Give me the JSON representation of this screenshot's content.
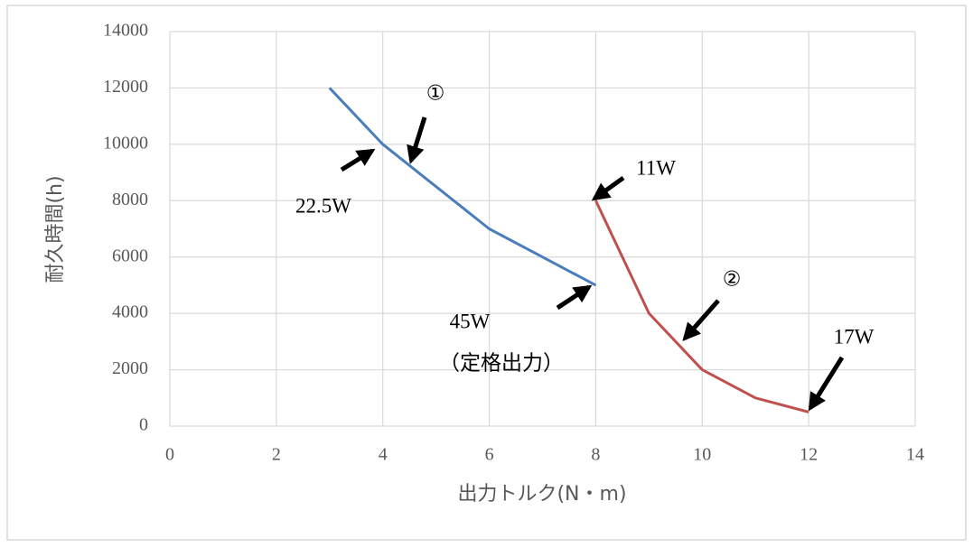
{
  "chart_data": {
    "type": "line",
    "x_label": "出力トルク(N・m)",
    "y_label": "耐久時間(h)",
    "xlim": [
      0,
      14
    ],
    "xticks": [
      0,
      2,
      4,
      6,
      8,
      10,
      12,
      14
    ],
    "ylim": [
      0,
      14000
    ],
    "yticks": [
      0,
      2000,
      4000,
      6000,
      8000,
      10000,
      12000,
      14000
    ],
    "grid": true,
    "series": [
      {
        "color": "#4a7ebb",
        "x": [
          3,
          4,
          5,
          6,
          7,
          8
        ],
        "values": [
          12000,
          10000,
          8500,
          7000,
          6000,
          5000
        ]
      },
      {
        "color": "#c0504d",
        "x": [
          8,
          9,
          10,
          11,
          12
        ],
        "values": [
          8000,
          4000,
          2000,
          1000,
          500
        ]
      }
    ],
    "annotations": [
      "①",
      "22.5W",
      "45W",
      "（定格出力）",
      "11W",
      "②",
      "17W"
    ]
  }
}
